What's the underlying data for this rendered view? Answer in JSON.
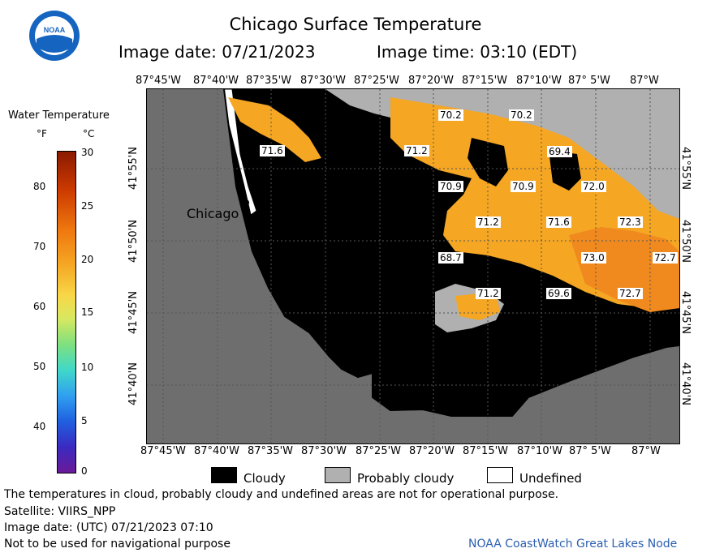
{
  "title": "Chicago Surface Temperature",
  "image_date_label": "Image date: 07/21/2023",
  "image_time_label": "Image time: 03:10 (EDT)",
  "colorbar": {
    "title": "Water Temperature",
    "unit_f": "°F",
    "unit_c": "°C",
    "f_ticks": [
      "80",
      "70",
      "60",
      "50",
      "40"
    ],
    "c_ticks": [
      "30",
      "25",
      "20",
      "15",
      "10",
      "5",
      "0"
    ]
  },
  "map": {
    "lon_labels": [
      "87°45'W",
      "87°40'W",
      "87°35'W",
      "87°30'W",
      "87°25'W",
      "87°20'W",
      "87°15'W",
      "87°10'W",
      "87° 5'W",
      "87°W"
    ],
    "lat_labels": [
      "41°55'N",
      "41°50'N",
      "41°45'N",
      "41°40'N"
    ],
    "city": "Chicago",
    "values": [
      "71.6",
      "70.2",
      "70.2",
      "71.2",
      "69.4",
      "70.9",
      "70.9",
      "72.0",
      "71.2",
      "71.6",
      "72.3",
      "68.7",
      "73.0",
      "72.7",
      "71.2",
      "69.6",
      "72.7"
    ],
    "colors": {
      "land": "#6e6e6e",
      "cloud": "#000000",
      "probably_cloudy": "#b0b0b0",
      "water_warm": "#f5a623",
      "water_hot": "#f08a1e"
    }
  },
  "legend": {
    "cloudy": "Cloudy",
    "probably_cloudy": "Probably cloudy",
    "undefined": "Undefined"
  },
  "footer": {
    "note": "The temperatures in cloud, probably cloudy and undefined areas are not for operational purpose.",
    "satellite": "Satellite: VIIRS_NPP",
    "utc": "Image date: (UTC) 07/21/2023  07:10",
    "nav": "Not to be used for navigational purpose",
    "credit": "NOAA CoastWatch Great Lakes Node"
  }
}
